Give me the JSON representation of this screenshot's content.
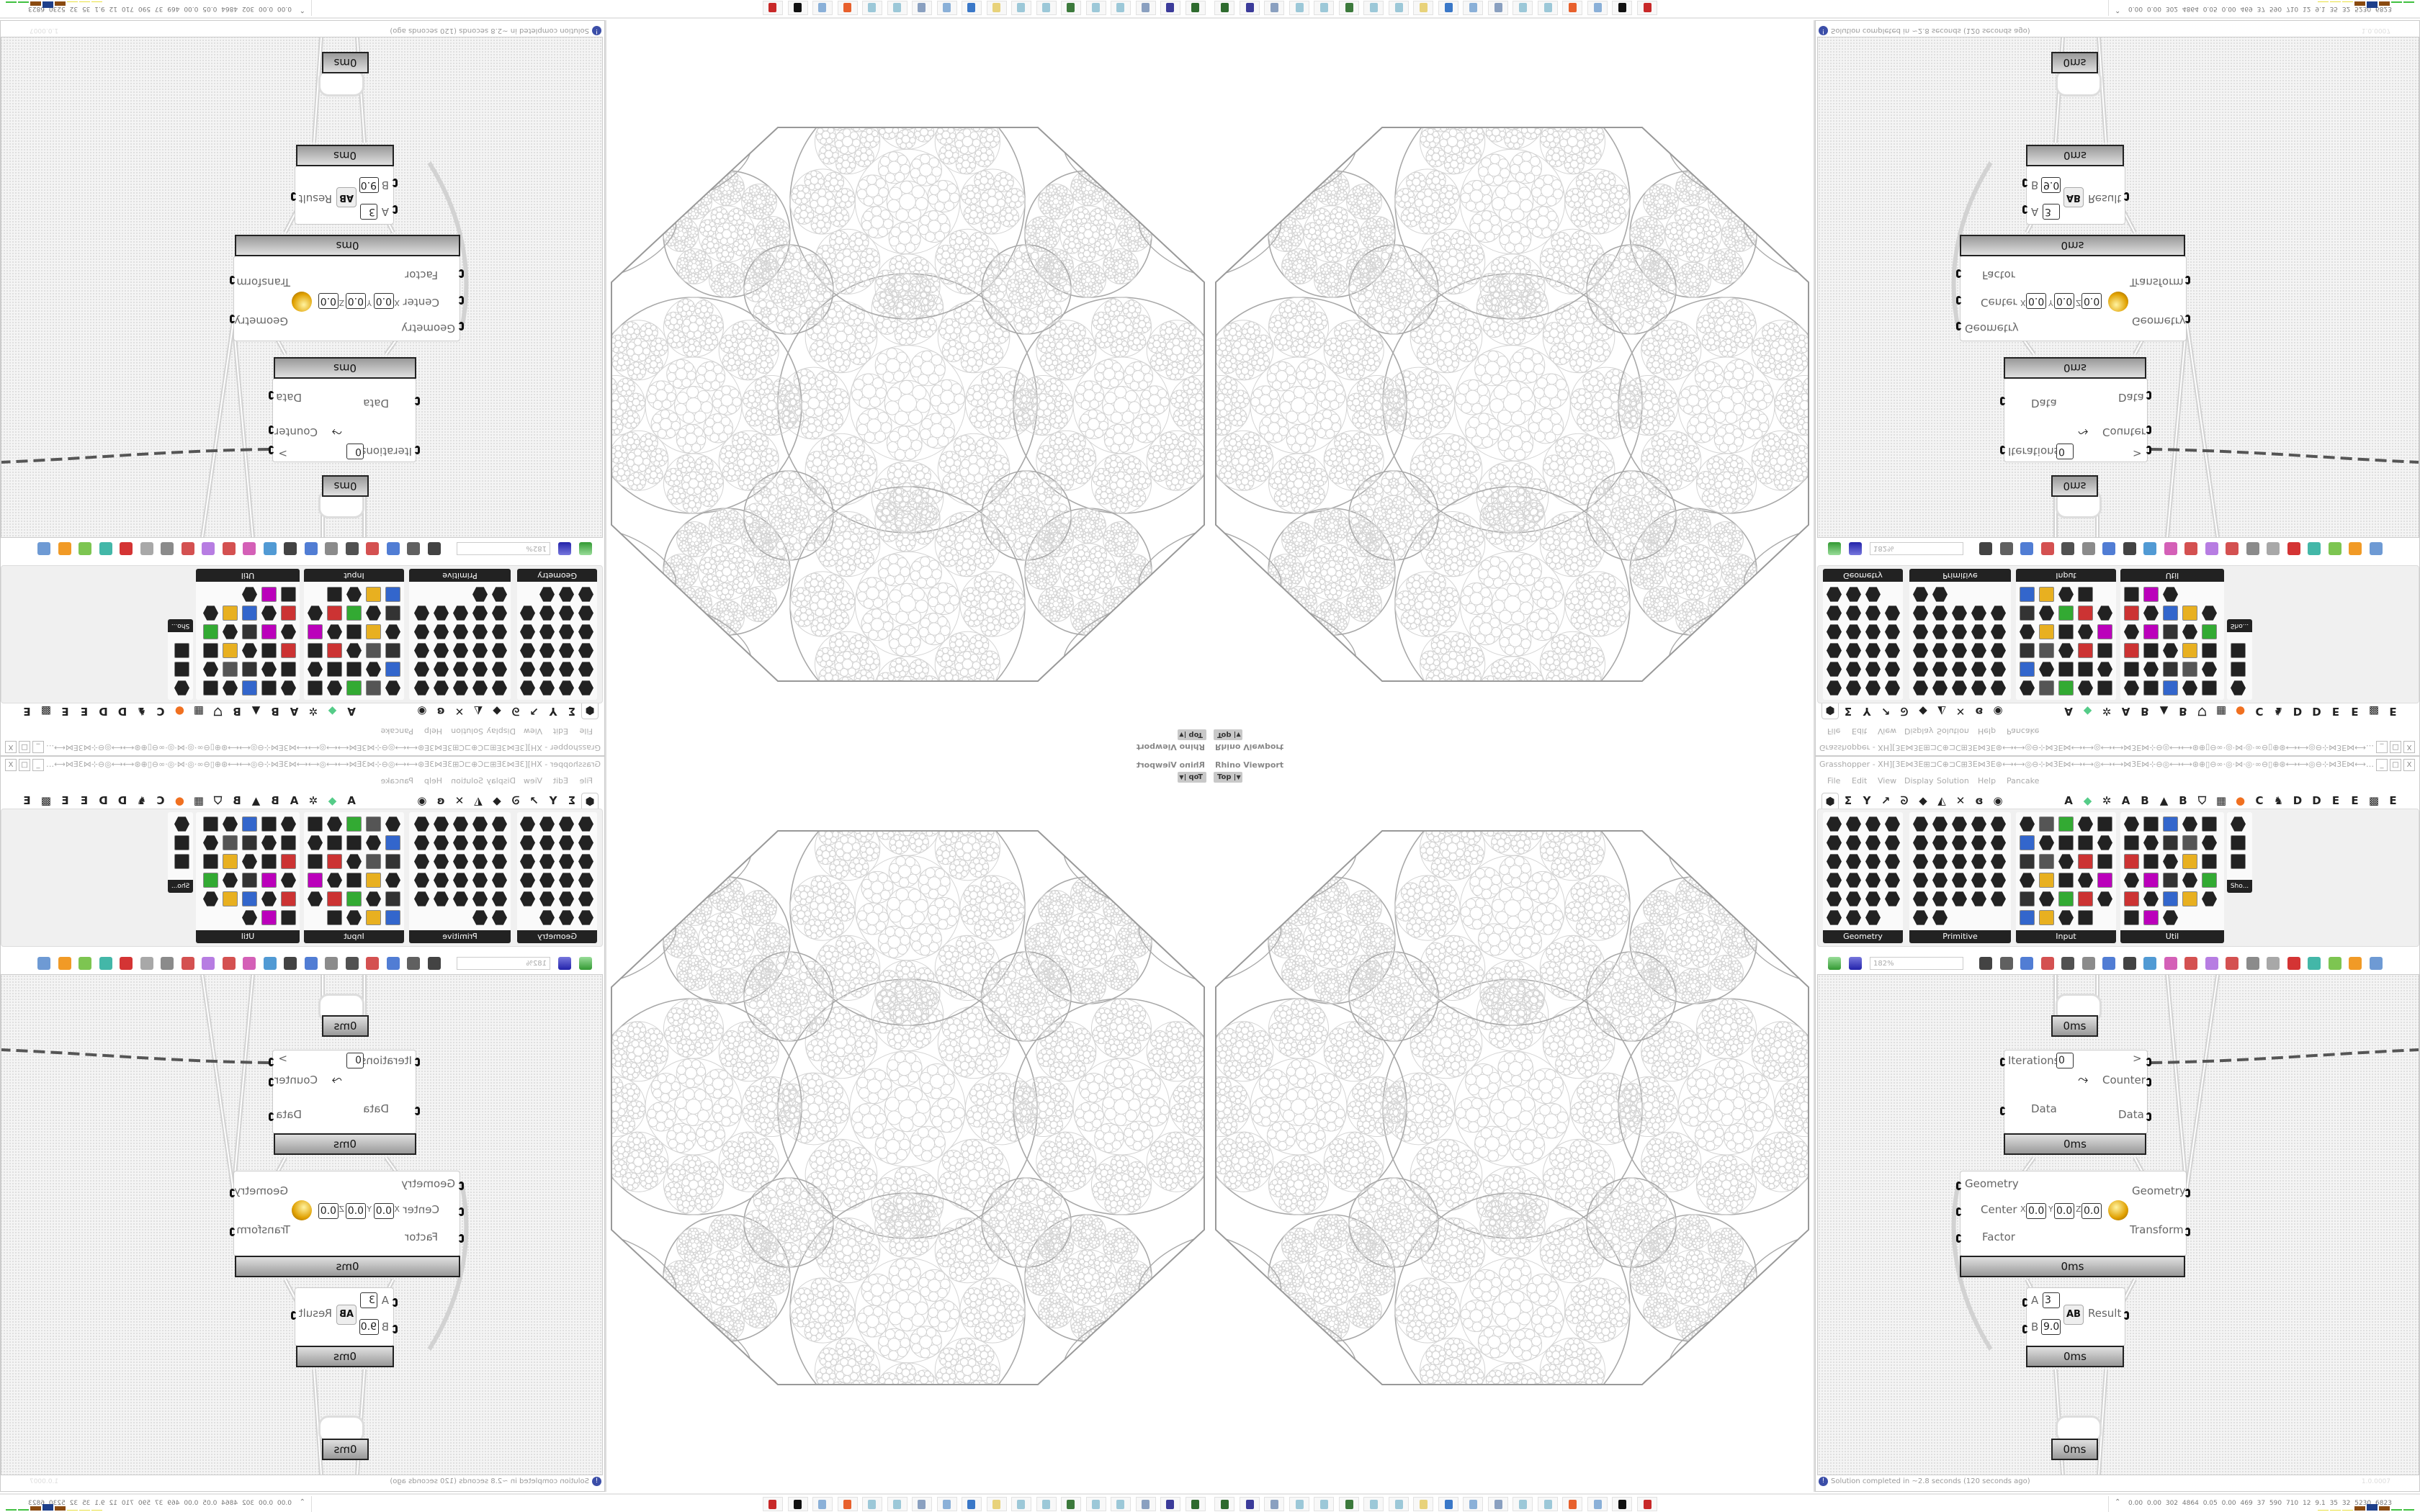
{
  "viewport": {
    "title": "Rhino Viewport",
    "view": "Top"
  },
  "grasshopper": {
    "title": "Grasshopper - XH][3E⋈3E⊞⊐C⊕⊐C⊞3E⋈3E⊛⟷⟷◎⊖⊹⋈3E⋈⟷⟷◎⟷⟷⋈3E⋈⊹⊖◎⟷⟷⊛⊕▯⊖∞·◎·⋈·◎·∞⊖▯⊕⊛⟷⟷◎⊖⊹⋈3E⋈⟷⟷◎...",
    "window_controls": [
      "_",
      "□",
      "X"
    ],
    "menu": [
      "File",
      "Edit",
      "View",
      "Display",
      "Solution",
      "Help",
      "Pancake"
    ],
    "tabs": [
      {
        "glyph": "⬢",
        "icon": "params-icon"
      },
      {
        "glyph": "Σ",
        "icon": "maths-icon"
      },
      {
        "glyph": "Y",
        "icon": "sets-icon"
      },
      {
        "glyph": "↗",
        "icon": "vector-icon"
      },
      {
        "glyph": "ᘐ",
        "icon": "curve-icon"
      },
      {
        "glyph": "◆",
        "icon": "surface-icon"
      },
      {
        "glyph": "◭",
        "icon": "mesh-icon"
      },
      {
        "glyph": "✕",
        "icon": "intersect-icon"
      },
      {
        "glyph": "ɞ",
        "icon": "transform-icon"
      },
      {
        "glyph": "◉",
        "icon": "display-icon"
      },
      {
        "glyph": "A",
        "icon": "plugin-a-icon"
      },
      {
        "glyph": "◆",
        "icon": "gem-icon"
      },
      {
        "glyph": "✲",
        "icon": "puzzle-icon"
      },
      {
        "glyph": "A",
        "icon": "plugin-a2-icon"
      },
      {
        "glyph": "B",
        "icon": "plugin-b-icon"
      },
      {
        "glyph": "▲",
        "icon": "mountain-icon"
      },
      {
        "glyph": "B",
        "icon": "plugin-b2-icon"
      },
      {
        "glyph": "⛉",
        "icon": "shield-icon"
      },
      {
        "glyph": "▦",
        "icon": "grid-icon"
      },
      {
        "glyph": "●",
        "icon": "orange-circle-icon"
      },
      {
        "glyph": "C",
        "icon": "plugin-c-icon"
      },
      {
        "glyph": "♞",
        "icon": "rooster-icon"
      },
      {
        "glyph": "D",
        "icon": "plugin-d-icon"
      },
      {
        "glyph": "D",
        "icon": "plugin-d2-icon"
      },
      {
        "glyph": "E",
        "icon": "plugin-e-icon"
      },
      {
        "glyph": "E",
        "icon": "plugin-e2-icon"
      },
      {
        "glyph": "▩",
        "icon": "checker-icon"
      },
      {
        "glyph": "E",
        "icon": "plugin-e3-icon"
      }
    ],
    "panels": [
      {
        "label": "Geometry",
        "count": 23
      },
      {
        "label": "Primitive",
        "count": 27
      },
      {
        "label": "Input",
        "count": 29
      },
      {
        "label": "Util",
        "count": 28
      },
      {
        "label": "Sho...",
        "count": 3
      }
    ],
    "zoom": "182%",
    "components": {
      "timer_top": "0ms",
      "loop": {
        "inputs": [
          "Iterations",
          "Data"
        ],
        "iterations_value": "0",
        "outputs": [
          ">",
          "Counter",
          "Data"
        ],
        "time": "0ms"
      },
      "scale": {
        "inputs": [
          "Geometry",
          "Center",
          "Factor"
        ],
        "center": {
          "x_label": "X",
          "x": "0.0",
          "y_label": "Y",
          "y": "0.0",
          "z_label": "Z",
          "z": "0.0"
        },
        "outputs": [
          "Geometry",
          "Transform"
        ],
        "time": "0ms"
      },
      "power": {
        "inputs": [
          "A",
          "B"
        ],
        "a": "3",
        "b": "9.0",
        "output": "Result",
        "icon_text": "AB",
        "time": "0ms"
      },
      "timer_bottom": "0ms"
    },
    "status": "Solution completed in ~2.8 seconds (120 seconds ago)",
    "version": "1.0.0007"
  },
  "taskbar": {
    "icons": [
      {
        "name": "device-app-icon",
        "color": "#2e6b2e"
      },
      {
        "name": "floppy-64-icon",
        "color": "#3b3b9a"
      },
      {
        "name": "stack-icon",
        "color": "#8aa0c0"
      },
      {
        "name": "notepad-icon",
        "color": "#9cc8d8"
      },
      {
        "name": "notepad-icon",
        "color": "#9cc8d8"
      },
      {
        "name": "monitor-icon",
        "color": "#3c7a3c"
      },
      {
        "name": "notepad-icon",
        "color": "#9cc8d8"
      },
      {
        "name": "notepad-icon",
        "color": "#9cc8d8"
      },
      {
        "name": "folder-icon",
        "color": "#e8d27a"
      },
      {
        "name": "control-panel-icon",
        "color": "#3a78c8"
      },
      {
        "name": "calculator-icon",
        "color": "#8ab0d8"
      },
      {
        "name": "stack-icon",
        "color": "#8aa0c0"
      },
      {
        "name": "notepad-icon",
        "color": "#9cc8d8"
      },
      {
        "name": "notepad-icon",
        "color": "#9cc8d8"
      },
      {
        "name": "firefox-icon",
        "color": "#e8602c"
      },
      {
        "name": "calculator-icon",
        "color": "#8ab0d8"
      },
      {
        "name": "rhino-icon",
        "color": "#111111"
      },
      {
        "name": "red-app-icon",
        "color": "#c82828"
      }
    ]
  },
  "tray": {
    "arrow": "⌃",
    "stats": [
      "0.00",
      "0.00",
      "302",
      "4864",
      "0.05",
      "0.00",
      "469",
      "37",
      "590",
      "710",
      "12",
      "9.1",
      "35",
      "32",
      "5230",
      "6823"
    ],
    "graph_colors": [
      "#e8e040",
      "#e8e040",
      "#e8e040",
      "#8a4a10",
      "#1e3f8a",
      "#8a4a10",
      "#40c040",
      "#40c040"
    ]
  }
}
